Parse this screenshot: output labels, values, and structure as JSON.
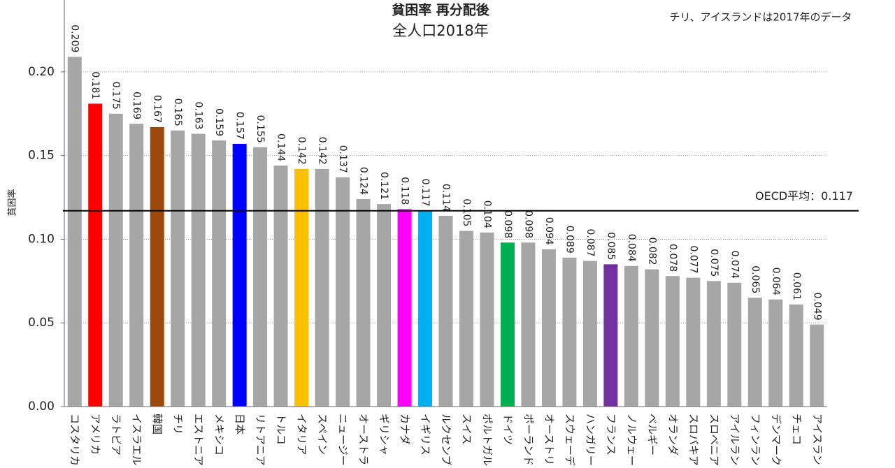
{
  "chart_data": {
    "type": "bar",
    "title": "貧困率 再分配後",
    "subtitle": "全人口2018年",
    "annotation": "チリ、アイスランドは2017年のデータ",
    "y_label": "貧困率",
    "categories": [
      "コスタリカ",
      "アメリカ",
      "ラトビア",
      "イスラエル",
      "韓国",
      "チリ",
      "エストニア",
      "メキシコ",
      "日本",
      "リトアニア",
      "トルコ",
      "イタリア",
      "スペイン",
      "ニュージー",
      "オーストラ",
      "ギリシャ",
      "カナダ",
      "イギリス",
      "ルクセンブ",
      "スイス",
      "ポルトガル",
      "ドイツ",
      "ポーランド",
      "オーストリ",
      "スウェーデ",
      "ハンガリー",
      "フランス",
      "ノルウェー",
      "ベルギー",
      "オランダ",
      "スロバキア",
      "スロベニア",
      "アイルラン",
      "フィンラン",
      "デンマーク",
      "チェコ",
      "アイスラン"
    ],
    "values": [
      0.209,
      0.181,
      0.175,
      0.169,
      0.167,
      0.165,
      0.163,
      0.159,
      0.157,
      0.155,
      0.144,
      0.142,
      0.142,
      0.137,
      0.124,
      0.121,
      0.118,
      0.117,
      0.114,
      0.105,
      0.104,
      0.098,
      0.098,
      0.094,
      0.089,
      0.087,
      0.085,
      0.084,
      0.082,
      0.078,
      0.077,
      0.075,
      0.074,
      0.065,
      0.064,
      0.061,
      0.049
    ],
    "colors": [
      "#a6a6a6",
      "#ff0000",
      "#a6a6a6",
      "#a6a6a6",
      "#9c4a0c",
      "#a6a6a6",
      "#a6a6a6",
      "#a6a6a6",
      "#0000ff",
      "#a6a6a6",
      "#a6a6a6",
      "#ffc000",
      "#a6a6a6",
      "#a6a6a6",
      "#a6a6a6",
      "#a6a6a6",
      "#ff00ff",
      "#00b0f0",
      "#a6a6a6",
      "#a6a6a6",
      "#a6a6a6",
      "#00b050",
      "#a6a6a6",
      "#a6a6a6",
      "#a6a6a6",
      "#a6a6a6",
      "#7030a0",
      "#a6a6a6",
      "#a6a6a6",
      "#a6a6a6",
      "#a6a6a6",
      "#a6a6a6",
      "#a6a6a6",
      "#a6a6a6",
      "#a6a6a6",
      "#a6a6a6",
      "#a6a6a6"
    ],
    "ylim": [
      0,
      0.22
    ],
    "yticks": [
      {
        "value": 0,
        "label": "0.00"
      },
      {
        "value": 0.05,
        "label": "0.05"
      },
      {
        "value": 0.1,
        "label": "0.10"
      },
      {
        "value": 0.15,
        "label": "0.15"
      },
      {
        "value": 0.2,
        "label": "0.20"
      }
    ],
    "grid": true,
    "reference_line": {
      "value": 0.117,
      "label": "OECD平均：0.117"
    }
  }
}
